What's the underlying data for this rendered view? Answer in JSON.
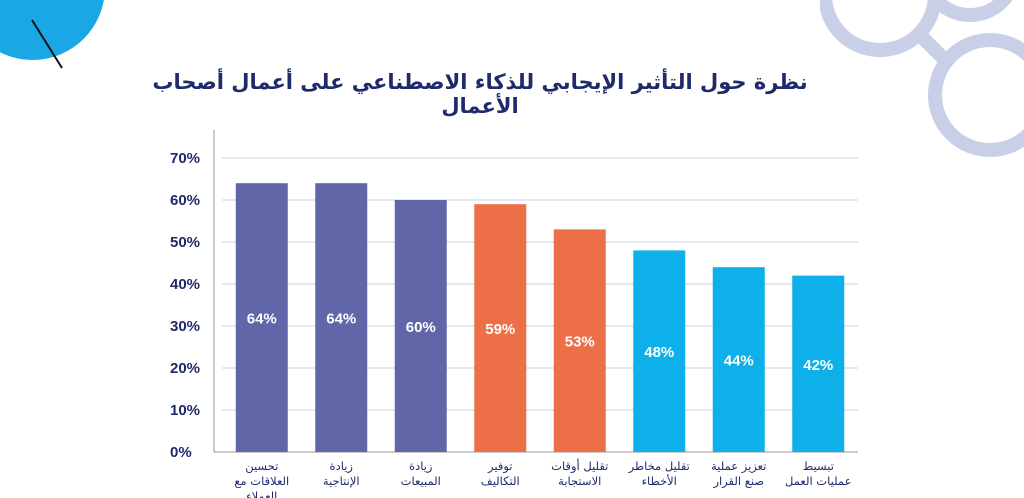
{
  "colors": {
    "background": "#ffffff",
    "title": "#1f2a6b",
    "axis_text": "#1f2a6b",
    "grid": "#c8cde6",
    "deco_circle": "#1aa7e6",
    "deco_rings": "#c9cfe6",
    "value_label": "#ffffff"
  },
  "chart_data": {
    "type": "bar",
    "title": "نظرة حول التأثير الإيجابي للذكاء الاصطناعي على أعمال أصحاب الأعمال",
    "xlabel": "",
    "ylabel": "",
    "ylim": [
      0,
      70
    ],
    "yticks": [
      "0%",
      "10%",
      "20%",
      "30%",
      "40%",
      "50%",
      "60%",
      "70%"
    ],
    "grid": true,
    "categories": [
      [
        "تحسين",
        "العلاقات مع",
        "العملاء"
      ],
      [
        "زيادة",
        "الإنتاجية"
      ],
      [
        "زيادة",
        "المبيعات"
      ],
      [
        "توفير",
        "التكاليف"
      ],
      [
        "تقليل أوقات",
        "الاستجابة"
      ],
      [
        "تقليل مخاطر",
        "الأخطاء"
      ],
      [
        "تعزيز عملية",
        "صنع القرار"
      ],
      [
        "تبسيط",
        "عمليات العمل"
      ]
    ],
    "values": [
      64,
      64,
      60,
      59,
      53,
      48,
      44,
      42
    ],
    "value_labels": [
      "64%",
      "64%",
      "60%",
      "59%",
      "53%",
      "48%",
      "44%",
      "42%"
    ],
    "bar_colors": [
      "#6166a8",
      "#6166a8",
      "#6166a8",
      "#ec6f48",
      "#ec6f48",
      "#0db0e8",
      "#0db0e8",
      "#0db0e8"
    ]
  }
}
